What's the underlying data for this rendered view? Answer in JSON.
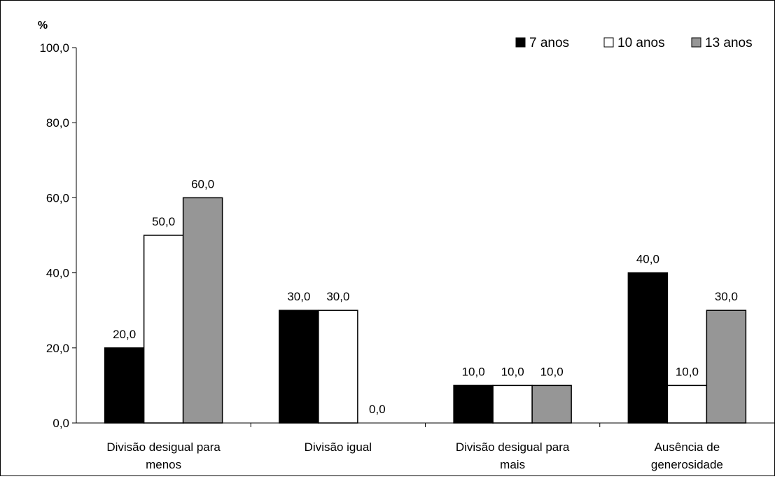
{
  "chart_data": {
    "type": "bar",
    "ylabel": "%",
    "ylim": [
      0,
      100
    ],
    "yticks": [
      "0,0",
      "20,0",
      "40,0",
      "60,0",
      "80,0",
      "100,0"
    ],
    "categories": [
      [
        "Divisão desigual para",
        "menos"
      ],
      [
        "Divisão igual"
      ],
      [
        "Divisão desigual para",
        "mais"
      ],
      [
        "Ausência de",
        "generosidade"
      ]
    ],
    "series": [
      {
        "name": "7 anos",
        "values": [
          20.0,
          30.0,
          10.0,
          40.0
        ],
        "labels": [
          "20,0",
          "30,0",
          "10,0",
          "40,0"
        ],
        "color": "#000000"
      },
      {
        "name": "10 anos",
        "values": [
          50.0,
          30.0,
          10.0,
          10.0
        ],
        "labels": [
          "50,0",
          "30,0",
          "10,0",
          "10,0"
        ],
        "color": "#ffffff"
      },
      {
        "name": "13 anos",
        "values": [
          60.0,
          0.0,
          10.0,
          30.0
        ],
        "labels": [
          "60,0",
          "0,0",
          "10,0",
          "30,0"
        ],
        "color": "#969696"
      }
    ],
    "legend_position": "top-right",
    "grid": false
  }
}
